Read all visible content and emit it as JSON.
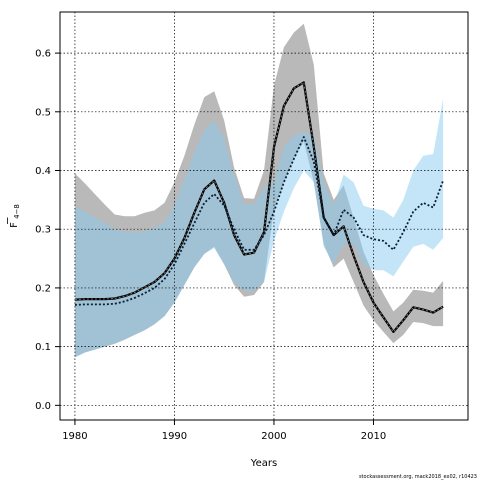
{
  "chart_data": {
    "type": "line",
    "xlabel": "Years",
    "ylabel": "F",
    "ylabel_subscript": "4−8",
    "xlim": [
      1978.5,
      2019.5
    ],
    "ylim": [
      -0.025,
      0.67
    ],
    "xticks": [
      1980,
      1990,
      2000,
      2010
    ],
    "yticks": [
      0.0,
      0.1,
      0.2,
      0.3,
      0.4,
      0.5,
      0.6
    ],
    "ytick_labels": [
      "0.0",
      "0.1",
      "0.2",
      "0.3",
      "0.4",
      "0.5",
      "0.6"
    ],
    "grid": true,
    "footnote": "stockassessment.org, mack2018_ex02, r10423",
    "x": [
      1980,
      1981,
      1982,
      1983,
      1984,
      1985,
      1986,
      1987,
      1988,
      1989,
      1990,
      1991,
      1992,
      1993,
      1994,
      1995,
      1996,
      1997,
      1998,
      1999,
      2000,
      2001,
      2002,
      2003,
      2004,
      2005,
      2006,
      2007,
      2008,
      2009,
      2010,
      2011,
      2012,
      2013,
      2014,
      2015,
      2016,
      2017
    ],
    "series": [
      {
        "color": "#000000",
        "band_color": "#808080",
        "estimate": [
          0.18,
          0.181,
          0.181,
          0.181,
          0.182,
          0.186,
          0.192,
          0.201,
          0.21,
          0.225,
          0.25,
          0.285,
          0.328,
          0.368,
          0.383,
          0.345,
          0.29,
          0.257,
          0.26,
          0.295,
          0.44,
          0.51,
          0.54,
          0.55,
          0.44,
          0.32,
          0.29,
          0.305,
          0.255,
          0.21,
          0.175,
          0.15,
          0.125,
          0.145,
          0.167,
          0.163,
          0.158,
          0.168
        ],
        "lower": [
          0.082,
          0.09,
          0.095,
          0.1,
          0.105,
          0.112,
          0.12,
          0.128,
          0.138,
          0.152,
          0.175,
          0.205,
          0.235,
          0.258,
          0.27,
          0.24,
          0.205,
          0.185,
          0.188,
          0.21,
          0.335,
          0.38,
          0.42,
          0.45,
          0.38,
          0.275,
          0.235,
          0.25,
          0.21,
          0.17,
          0.145,
          0.125,
          0.106,
          0.12,
          0.142,
          0.14,
          0.135,
          0.135
        ],
        "upper": [
          0.395,
          0.378,
          0.36,
          0.342,
          0.325,
          0.322,
          0.322,
          0.328,
          0.332,
          0.345,
          0.38,
          0.425,
          0.478,
          0.525,
          0.535,
          0.485,
          0.405,
          0.353,
          0.352,
          0.4,
          0.545,
          0.61,
          0.635,
          0.65,
          0.58,
          0.395,
          0.35,
          0.375,
          0.32,
          0.262,
          0.222,
          0.19,
          0.16,
          0.175,
          0.197,
          0.195,
          0.192,
          0.212
        ]
      },
      {
        "color": "#0a1e3c",
        "band_color": "#87cbef",
        "estimate": [
          0.171,
          0.172,
          0.172,
          0.172,
          0.173,
          0.177,
          0.183,
          0.191,
          0.2,
          0.215,
          0.24,
          0.275,
          0.31,
          0.345,
          0.36,
          0.34,
          0.3,
          0.265,
          0.265,
          0.29,
          0.33,
          0.38,
          0.42,
          0.457,
          0.415,
          0.32,
          0.29,
          0.333,
          0.32,
          0.29,
          0.283,
          0.28,
          0.265,
          0.295,
          0.33,
          0.345,
          0.337,
          0.383
        ],
        "lower": [
          0.082,
          0.09,
          0.095,
          0.1,
          0.105,
          0.112,
          0.12,
          0.128,
          0.138,
          0.152,
          0.175,
          0.205,
          0.235,
          0.258,
          0.268,
          0.24,
          0.21,
          0.195,
          0.195,
          0.21,
          0.28,
          0.33,
          0.37,
          0.4,
          0.38,
          0.27,
          0.24,
          0.275,
          0.275,
          0.24,
          0.23,
          0.23,
          0.22,
          0.245,
          0.27,
          0.275,
          0.265,
          0.285
        ],
        "upper": [
          0.338,
          0.33,
          0.32,
          0.31,
          0.3,
          0.296,
          0.295,
          0.297,
          0.302,
          0.312,
          0.34,
          0.385,
          0.43,
          0.468,
          0.485,
          0.455,
          0.393,
          0.342,
          0.343,
          0.37,
          0.38,
          0.44,
          0.46,
          0.465,
          0.46,
          0.38,
          0.34,
          0.393,
          0.38,
          0.34,
          0.335,
          0.332,
          0.32,
          0.35,
          0.4,
          0.425,
          0.428,
          0.522
        ]
      }
    ]
  }
}
